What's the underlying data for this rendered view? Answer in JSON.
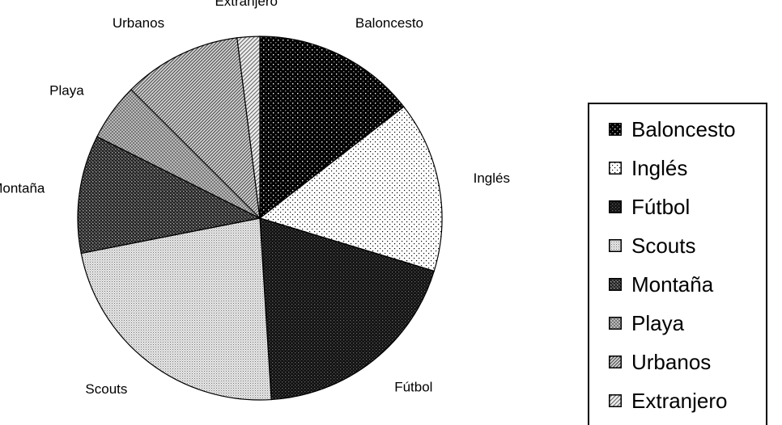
{
  "chart_data": {
    "type": "pie",
    "title": "",
    "categories": [
      "Baloncesto",
      "Inglés",
      "Fútbol",
      "Scouts",
      "Montaña",
      "Playa",
      "Urbanos",
      "Extranjero"
    ],
    "values": [
      14.5,
      15.2,
      19.3,
      22.9,
      10.5,
      5.1,
      10.5,
      2.0
    ],
    "unit": "",
    "legend": {
      "position": "right",
      "entries": [
        "Baloncesto",
        "Inglés",
        "Fútbol",
        "Scouts",
        "Montaña",
        "Playa",
        "Urbanos",
        "Extranjero"
      ]
    },
    "patterns": [
      "dots-on-black",
      "sparse-dots-on-white",
      "grid-on-black",
      "fine-dots-on-light",
      "crosshatch-dark",
      "small-checks-light",
      "diagonal-lines-dense",
      "diagonal-lines-sparse"
    ],
    "colors": {
      "background": "#ffffff",
      "stroke": "#000000"
    },
    "grid": false
  }
}
